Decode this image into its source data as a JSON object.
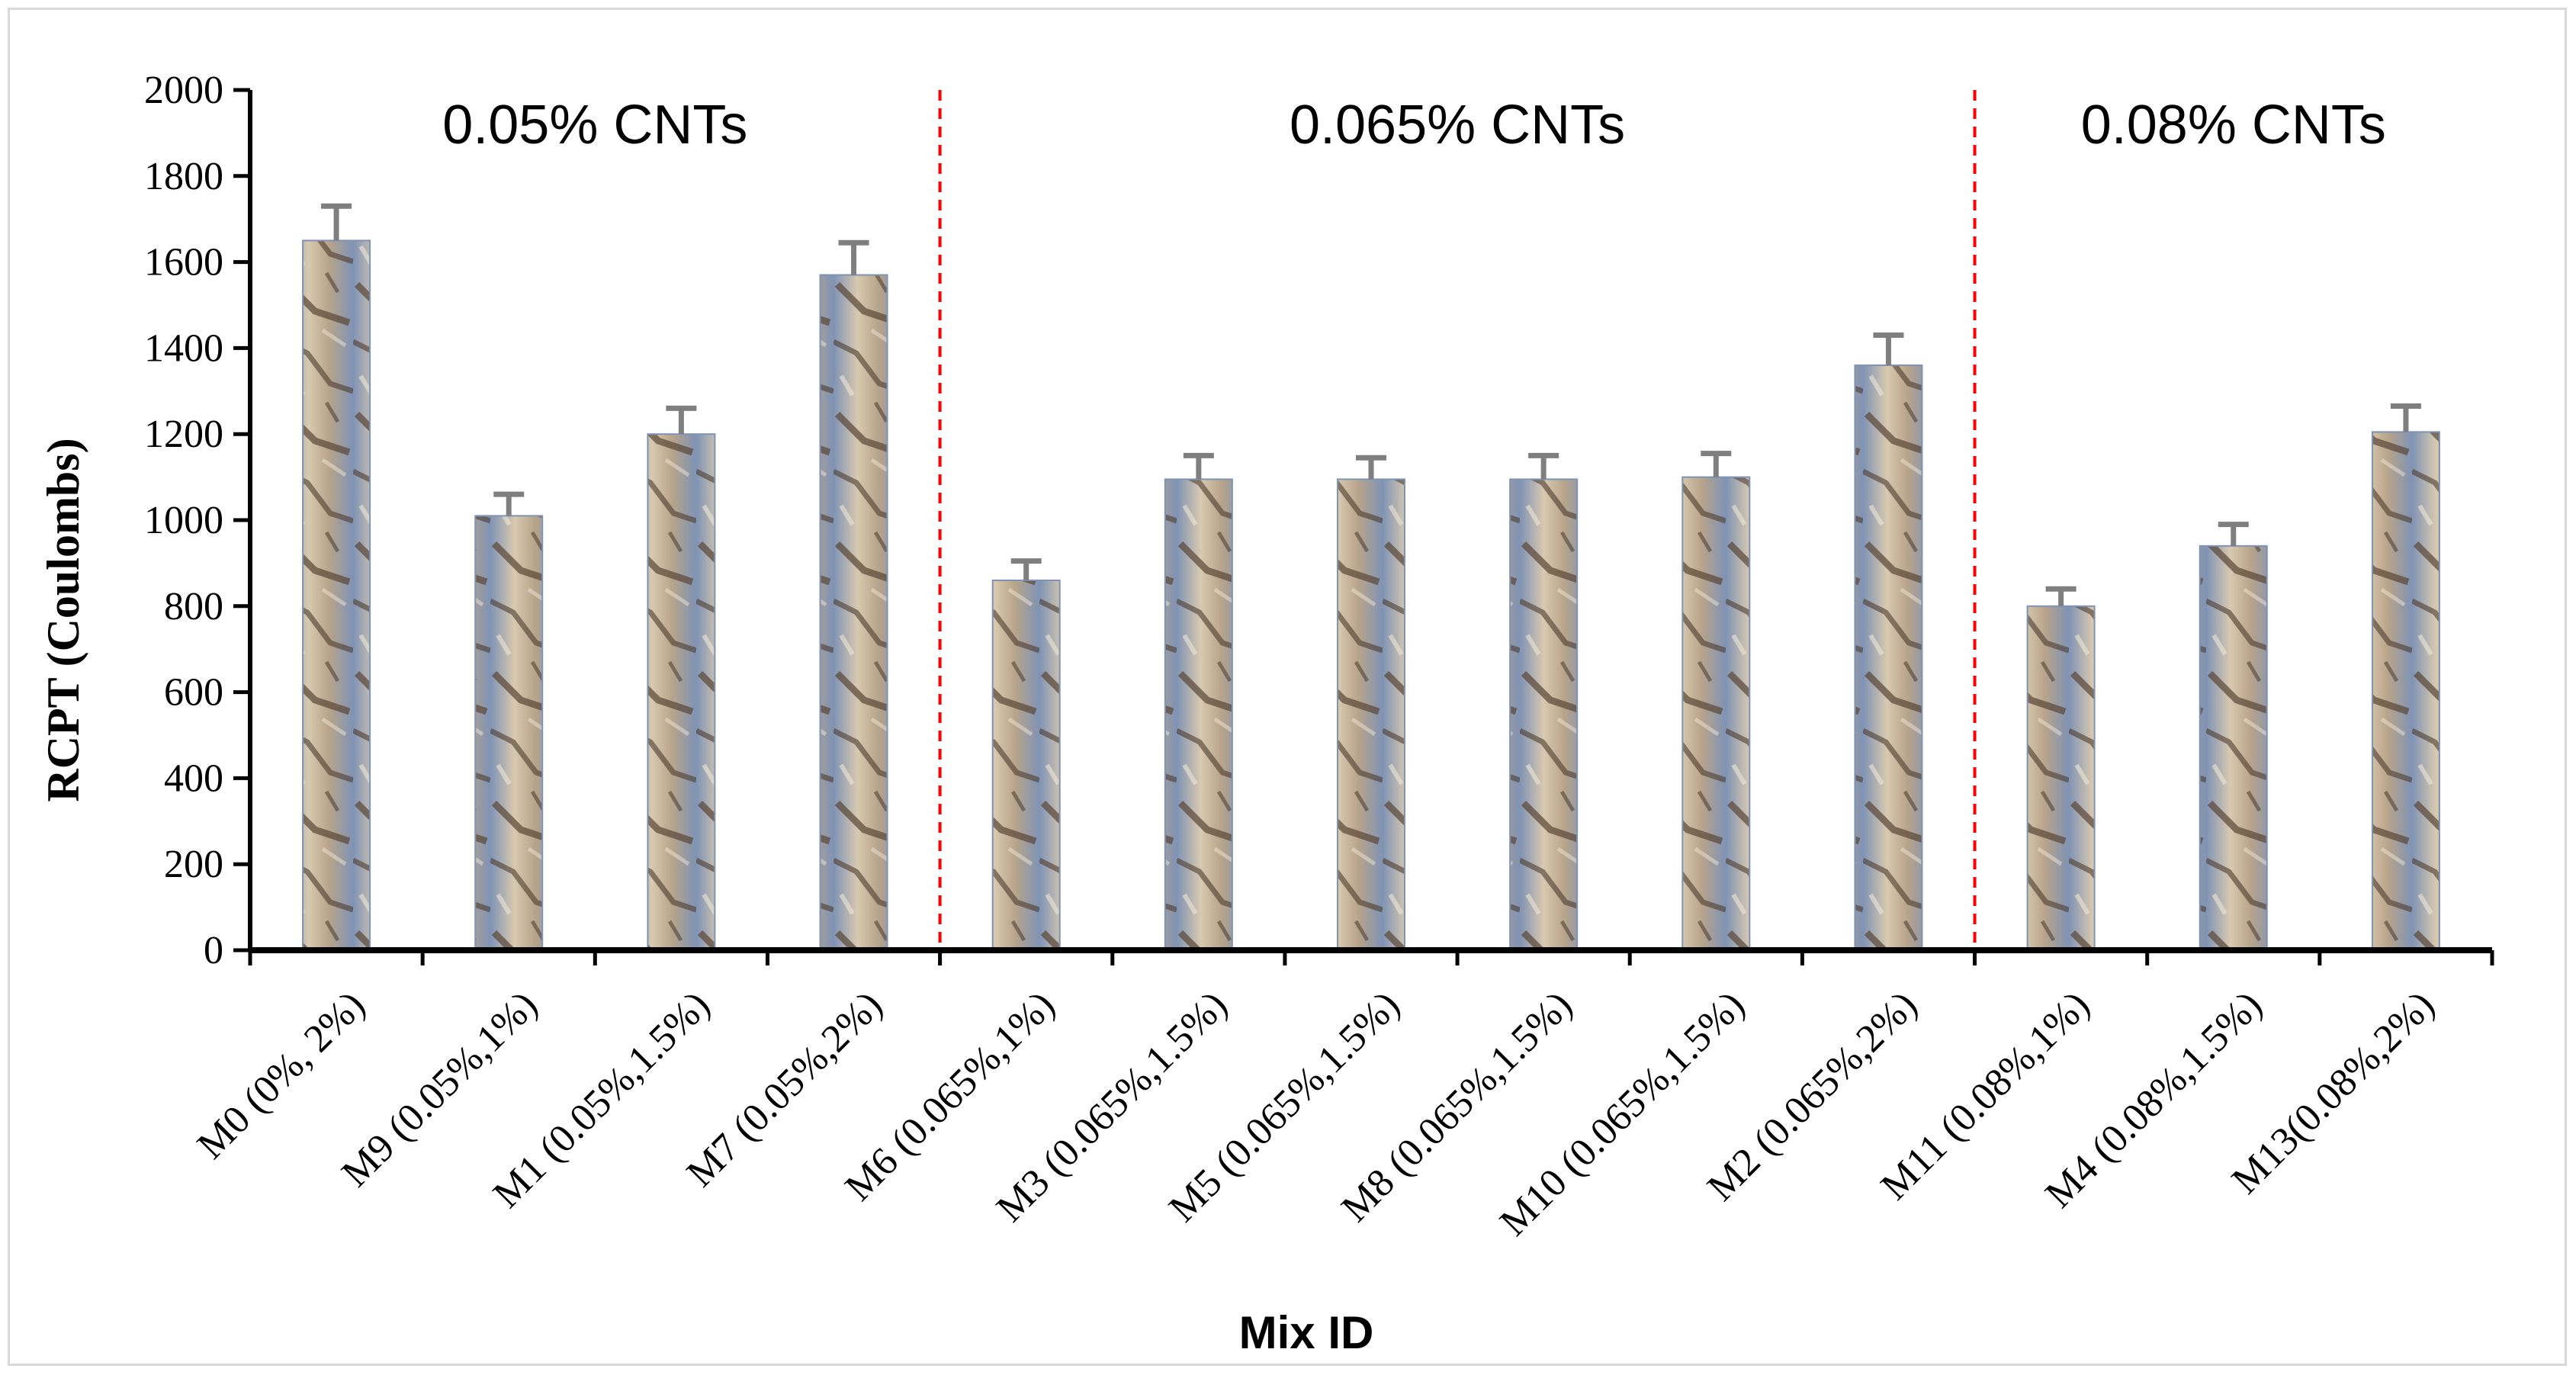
{
  "chart_data": {
    "type": "bar",
    "title": "",
    "xlabel": "Mix ID",
    "ylabel": "RCPT (Coulombs)",
    "ylim": [
      0,
      2000
    ],
    "yticks": [
      0,
      200,
      400,
      600,
      800,
      1000,
      1200,
      1400,
      1600,
      1800,
      2000
    ],
    "grid": false,
    "legend": "none",
    "categories": [
      "M0 (0%, 2%)",
      "M9 (0.05%,1%)",
      "M1 (0.05%,1.5%)",
      "M7 (0.05%,2%)",
      "M6 (0.065%,1%)",
      "M3 (0.065%,1.5%)",
      "M5 (0.065%,1.5%)",
      "M8 (0.065%,1.5%)",
      "M10 (0.065%,1.5%)",
      "M2 (0.065%,2%)",
      "M11 (0.08%,1%)",
      "M4 (0.08%,1.5%)",
      "M13(0.08%,2%)"
    ],
    "values": [
      1650,
      1010,
      1200,
      1570,
      860,
      1095,
      1095,
      1095,
      1100,
      1360,
      800,
      940,
      1205
    ],
    "error_upper": [
      1730,
      1060,
      1260,
      1645,
      905,
      1150,
      1145,
      1150,
      1155,
      1430,
      840,
      990,
      1265
    ],
    "groups": [
      {
        "label": "0.05% CNTs",
        "first_index": 0,
        "last_index": 3
      },
      {
        "label": "0.065% CNTs",
        "first_index": 4,
        "last_index": 9
      },
      {
        "label": "0.08% CNTs",
        "first_index": 10,
        "last_index": 12
      }
    ],
    "colors": {
      "bar_base": "#b8a48a",
      "bar_dark": "#6e5a48",
      "bar_light": "#d8c9b0",
      "bar_edge": "#7f93b5",
      "error_bar": "#7f7f7f",
      "axis": "#000000",
      "divider": "#ff0000"
    }
  }
}
